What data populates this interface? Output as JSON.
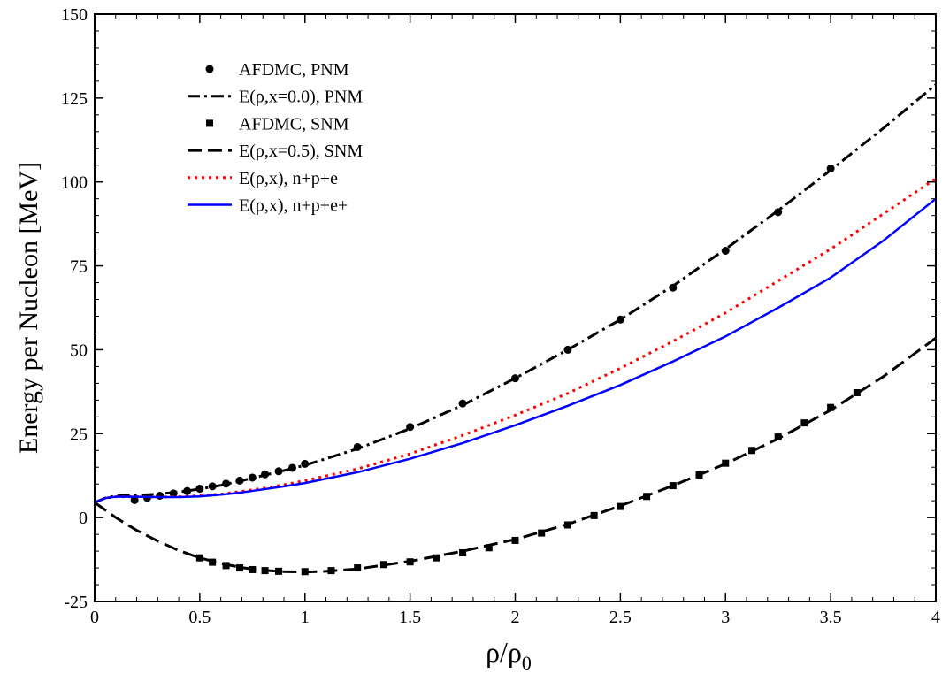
{
  "chart_data": {
    "type": "line",
    "xlabel": "ρ/ρ",
    "xlabel_subscript": "0",
    "ylabel": "Energy per Nucleon [MeV]",
    "xlim": [
      0,
      4
    ],
    "ylim": [
      -25,
      150
    ],
    "x_ticks": [
      "0",
      "0.5",
      "1",
      "1.5",
      "2",
      "2.5",
      "3",
      "3.5",
      "4"
    ],
    "y_ticks": [
      "-25",
      "0",
      "25",
      "50",
      "75",
      "100",
      "125",
      "150"
    ],
    "grid": false,
    "legend_position": "top-left",
    "series": [
      {
        "name": "AFDMC, PNM",
        "style": "marker-circle",
        "color": "#000000",
        "x": [
          0.19,
          0.25,
          0.31,
          0.375,
          0.44,
          0.5,
          0.56,
          0.625,
          0.69,
          0.75,
          0.81,
          0.875,
          0.94,
          1.0,
          1.25,
          1.5,
          1.75,
          2.0,
          2.25,
          2.5,
          2.75,
          3.0,
          3.25,
          3.5
        ],
        "y": [
          5.2,
          5.9,
          6.5,
          7.2,
          7.9,
          8.6,
          9.3,
          10.1,
          11.0,
          11.9,
          12.9,
          13.8,
          14.8,
          16.0,
          21.0,
          27.0,
          34.0,
          41.5,
          50.0,
          59.0,
          68.5,
          79.5,
          91.0,
          104.0
        ]
      },
      {
        "name": "E(ρ,x=0.0), PNM",
        "style": "dash-dot",
        "color": "#000000",
        "x": [
          0,
          0.05,
          0.1,
          0.2,
          0.3,
          0.4,
          0.5,
          0.6,
          0.7,
          0.8,
          0.9,
          1.0,
          1.25,
          1.5,
          1.75,
          2.0,
          2.25,
          2.5,
          2.75,
          3.0,
          3.25,
          3.5,
          3.75,
          4.0
        ],
        "y": [
          4.5,
          5.8,
          6.5,
          6.6,
          7.0,
          7.6,
          8.5,
          9.6,
          11.0,
          12.5,
          14.0,
          15.6,
          20.5,
          26.5,
          33.5,
          41.5,
          50.0,
          59.0,
          69.0,
          80.0,
          91.5,
          103.5,
          116.0,
          129.0
        ]
      },
      {
        "name": "AFDMC, SNM",
        "style": "marker-square",
        "color": "#000000",
        "x": [
          0.5,
          0.56,
          0.625,
          0.69,
          0.75,
          0.81,
          0.875,
          1.0,
          1.125,
          1.25,
          1.375,
          1.5,
          1.625,
          1.75,
          1.875,
          2.0,
          2.125,
          2.25,
          2.375,
          2.5,
          2.625,
          2.75,
          2.875,
          3.0,
          3.125,
          3.25,
          3.375,
          3.5,
          3.625
        ],
        "y": [
          -12.0,
          -13.3,
          -14.3,
          -15.0,
          -15.5,
          -15.8,
          -16.0,
          -16.1,
          -15.8,
          -15.0,
          -14.0,
          -13.2,
          -12.0,
          -10.5,
          -9.0,
          -6.8,
          -4.6,
          -2.2,
          0.6,
          3.3,
          6.3,
          9.5,
          12.7,
          16.2,
          20.0,
          24.0,
          28.2,
          32.8,
          37.2
        ]
      },
      {
        "name": "E(ρ,x=0.5), SNM",
        "style": "long-dash",
        "color": "#000000",
        "x": [
          0,
          0.1,
          0.2,
          0.3,
          0.4,
          0.5,
          0.6,
          0.7,
          0.8,
          0.9,
          1.0,
          1.1,
          1.25,
          1.5,
          1.75,
          2.0,
          2.25,
          2.5,
          2.75,
          3.0,
          3.25,
          3.5,
          3.75,
          4.0
        ],
        "y": [
          4.5,
          0.0,
          -3.8,
          -7.0,
          -9.8,
          -12.0,
          -13.7,
          -14.9,
          -15.7,
          -16.1,
          -16.2,
          -16.0,
          -15.3,
          -13.0,
          -10.0,
          -6.5,
          -2.0,
          3.5,
          9.5,
          16.0,
          23.5,
          32.0,
          42.0,
          53.5
        ]
      },
      {
        "name": "E(ρ,x), n+p+e",
        "style": "dotted",
        "color": "#ff0000",
        "x": [
          0,
          0.05,
          0.1,
          0.2,
          0.3,
          0.4,
          0.5,
          0.6,
          0.7,
          0.8,
          0.9,
          1.0,
          1.25,
          1.5,
          1.75,
          2.0,
          2.25,
          2.5,
          2.75,
          3.0,
          3.25,
          3.5,
          3.75,
          4.0
        ],
        "y": [
          4.5,
          5.8,
          6.2,
          6.2,
          6.1,
          6.2,
          6.5,
          7.0,
          7.8,
          8.7,
          9.8,
          11.0,
          14.5,
          19.0,
          24.5,
          30.5,
          37.0,
          44.5,
          52.5,
          61.0,
          70.5,
          80.0,
          90.5,
          101.0
        ]
      },
      {
        "name": "E(ρ,x), n+p+e+",
        "style": "solid",
        "color": "#0000ff",
        "x": [
          0,
          0.05,
          0.1,
          0.2,
          0.3,
          0.4,
          0.5,
          0.6,
          0.7,
          0.8,
          0.9,
          1.0,
          1.25,
          1.5,
          1.75,
          2.0,
          2.25,
          2.5,
          2.75,
          3.0,
          3.25,
          3.5,
          3.75,
          4.0
        ],
        "y": [
          4.5,
          5.8,
          6.2,
          6.2,
          6.1,
          6.1,
          6.3,
          6.8,
          7.5,
          8.4,
          9.3,
          10.3,
          13.5,
          17.5,
          22.2,
          27.5,
          33.3,
          39.5,
          46.5,
          54.0,
          62.5,
          71.5,
          82.5,
          95.0
        ]
      }
    ]
  }
}
